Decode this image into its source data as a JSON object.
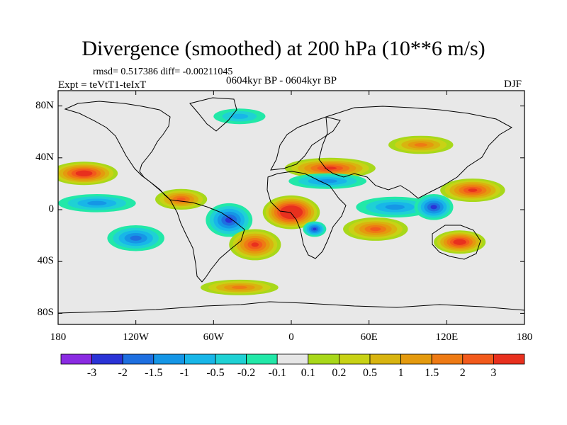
{
  "title": "Divergence (smoothed) at 200 hPa (10**6 m/s)",
  "stats": "rmsd= 0.517386 diff= -0.00211045",
  "experiment": "Expt = teVtT1-teIxT",
  "period": "0604kyr BP - 0604kyr BP",
  "season": "DJF",
  "map": {
    "projection": "cylindrical equidistant",
    "lon_range": [
      -180,
      180
    ],
    "lat_range": [
      -90,
      90
    ],
    "x_ticks": [
      {
        "lon": -180,
        "label": "180"
      },
      {
        "lon": -120,
        "label": "120W"
      },
      {
        "lon": -60,
        "label": "60W"
      },
      {
        "lon": 0,
        "label": "0"
      },
      {
        "lon": 60,
        "label": "60E"
      },
      {
        "lon": 120,
        "label": "120E"
      },
      {
        "lon": 180,
        "label": "180"
      }
    ],
    "y_ticks": [
      {
        "lat": 80,
        "label": "80N"
      },
      {
        "lat": 40,
        "label": "40N"
      },
      {
        "lat": 0,
        "label": "0"
      },
      {
        "lat": -40,
        "label": "40S"
      },
      {
        "lat": -80,
        "label": "80S"
      }
    ],
    "background_color": "#e8e8e8",
    "features": [
      {
        "name": "subtropical-north-pacific-max",
        "lon": -160,
        "lat": 28,
        "rlon": 26,
        "rlat": 9,
        "level": 8
      },
      {
        "name": "subtropical-north-atlantic-max",
        "lon": 30,
        "lat": 32,
        "rlon": 35,
        "rlat": 8,
        "level": 7
      },
      {
        "name": "north-africa-min",
        "lon": 28,
        "lat": 22,
        "rlon": 30,
        "rlat": 6,
        "level": -4
      },
      {
        "name": "equatorial-africa-max",
        "lon": 0,
        "lat": -2,
        "rlon": 22,
        "rlat": 13,
        "level": 10
      },
      {
        "name": "southern-africa-min",
        "lon": 18,
        "lat": -15,
        "rlon": 9,
        "rlat": 6,
        "level": -6
      },
      {
        "name": "south-america-min",
        "lon": -48,
        "lat": -8,
        "rlon": 18,
        "rlat": 13,
        "level": -6
      },
      {
        "name": "south-pacific-min",
        "lon": -120,
        "lat": -22,
        "rlon": 22,
        "rlat": 10,
        "level": -5
      },
      {
        "name": "south-atlantic-max",
        "lon": -28,
        "lat": -27,
        "rlon": 20,
        "rlat": 12,
        "level": 7
      },
      {
        "name": "indian-ocean-min",
        "lon": 80,
        "lat": 2,
        "rlon": 30,
        "rlat": 8,
        "level": -4
      },
      {
        "name": "indian-ocean-max",
        "lon": 65,
        "lat": -15,
        "rlon": 25,
        "rlat": 9,
        "level": 6
      },
      {
        "name": "maritime-continent-min",
        "lon": 110,
        "lat": 2,
        "rlon": 15,
        "rlat": 10,
        "level": -6
      },
      {
        "name": "west-pacific-max",
        "lon": 140,
        "lat": 15,
        "rlon": 25,
        "rlat": 9,
        "level": 7
      },
      {
        "name": "australia-max",
        "lon": 130,
        "lat": -25,
        "rlon": 20,
        "rlat": 9,
        "level": 8
      },
      {
        "name": "east-pacific-max",
        "lon": -85,
        "lat": 8,
        "rlon": 20,
        "rlat": 8,
        "level": 6
      },
      {
        "name": "central-pacific-min",
        "lon": -150,
        "lat": 5,
        "rlon": 30,
        "rlat": 7,
        "level": -4
      },
      {
        "name": "southern-ocean-max",
        "lon": -40,
        "lat": -60,
        "rlon": 30,
        "rlat": 6,
        "level": 5
      },
      {
        "name": "arctic-min",
        "lon": -40,
        "lat": 72,
        "rlon": 20,
        "rlat": 6,
        "level": -3
      },
      {
        "name": "north-asia-max",
        "lon": 100,
        "lat": 50,
        "rlon": 25,
        "rlat": 7,
        "level": 5
      }
    ]
  },
  "colorbar": {
    "colors": [
      "#8a2be2",
      "#2a33d6",
      "#1e6fe0",
      "#1596e6",
      "#18b6e8",
      "#1fd1d4",
      "#22e8a8",
      "#e6e6e6",
      "#a8d81a",
      "#c8d215",
      "#d8b410",
      "#e49a0e",
      "#ee7a14",
      "#f25a1c",
      "#e8301e"
    ],
    "labels": [
      "-3",
      "-2",
      "-1.5",
      "-1",
      "-0.5",
      "-0.2",
      "-0.1",
      "0.1",
      "0.2",
      "0.5",
      "1",
      "1.5",
      "2",
      "3"
    ]
  }
}
